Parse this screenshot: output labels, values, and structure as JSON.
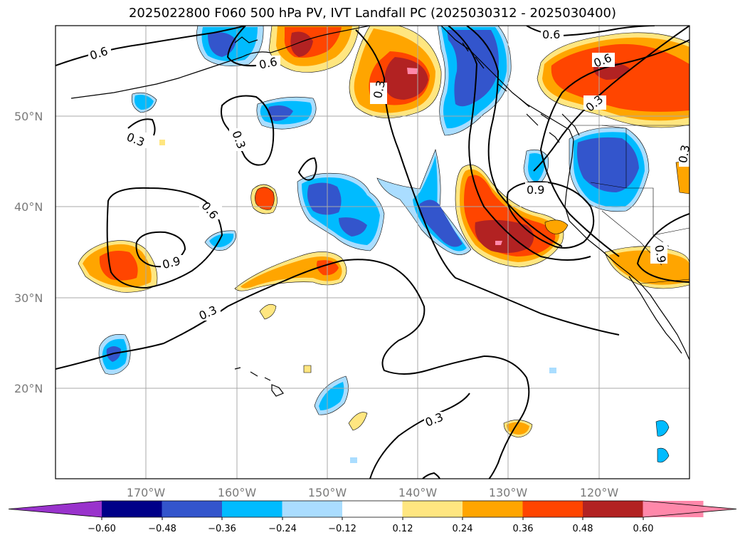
{
  "title": "2025022800 F060 500 hPa PV, IVT Landfall PC (2025030312 - 2025030400)",
  "lat_labels": [
    "50°N",
    "40°N",
    "30°N",
    "20°N"
  ],
  "lon_labels": [
    "170°W",
    "160°W",
    "150°W",
    "140°W",
    "130°W",
    "120°W"
  ],
  "colorbar": {
    "ticks": [
      "−0.60",
      "−0.48",
      "−0.36",
      "−0.24",
      "−0.12",
      "0.12",
      "0.24",
      "0.36",
      "0.48",
      "0.60"
    ],
    "colors": [
      "#9933cc",
      "#000088",
      "#3355cc",
      "#00bbff",
      "#aaddff",
      "#ffffff",
      "#ffe680",
      "#ffa500",
      "#ff4500",
      "#b22222",
      "#ff88aa",
      "#ff88aa"
    ]
  },
  "contour_labels": [
    "0.6",
    "0.6",
    "0.6",
    "0.6",
    "0.3",
    "0.3",
    "0.3",
    "0.3",
    "0.3",
    "0.3",
    "0.6",
    "0.9",
    "0.9",
    "0.3",
    "0.3",
    "0.3",
    "0.9"
  ],
  "chart_data": {
    "type": "map",
    "projection": "cylindrical",
    "lon_range": [
      -180,
      -110
    ],
    "lat_range": [
      10,
      60
    ],
    "grid": true,
    "filled_field": "IVT Landfall PC",
    "contour_field": "500 hPa PV",
    "contour_levels": [
      0.3,
      0.6,
      0.9
    ],
    "fill_levels": [
      -0.6,
      -0.48,
      -0.36,
      -0.24,
      -0.12,
      0.12,
      0.24,
      0.36,
      0.48,
      0.6
    ]
  }
}
